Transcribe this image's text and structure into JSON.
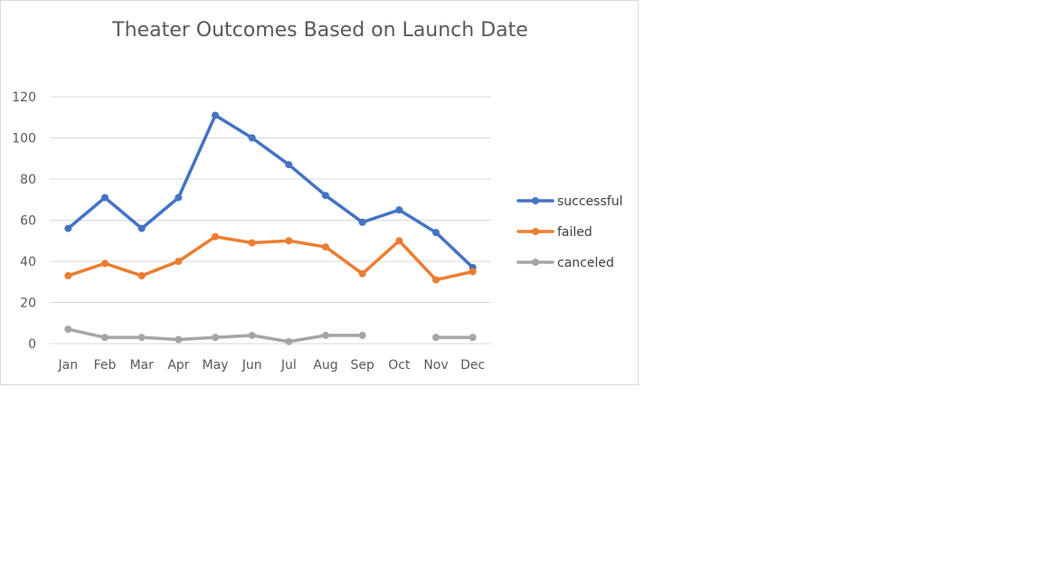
{
  "chart_data": {
    "type": "line",
    "title": "Theater Outcomes Based on Launch Date",
    "xlabel": "",
    "ylabel": "",
    "categories": [
      "Jan",
      "Feb",
      "Mar",
      "Apr",
      "May",
      "Jun",
      "Jul",
      "Aug",
      "Sep",
      "Oct",
      "Nov",
      "Dec"
    ],
    "yticks": [
      "0",
      "20",
      "40",
      "60",
      "80",
      "100",
      "120"
    ],
    "ylim": [
      0,
      120
    ],
    "grid": true,
    "legend_position": "right",
    "series": [
      {
        "name": "successful",
        "color": "#4472c4",
        "values": [
          56,
          71,
          56,
          71,
          111,
          100,
          87,
          72,
          59,
          65,
          54,
          37
        ]
      },
      {
        "name": "failed",
        "color": "#ed7d31",
        "values": [
          33,
          39,
          33,
          40,
          52,
          49,
          50,
          47,
          34,
          50,
          31,
          35
        ]
      },
      {
        "name": "canceled",
        "color": "#a5a5a5",
        "values": [
          7,
          3,
          3,
          2,
          3,
          4,
          1,
          4,
          4,
          null,
          3,
          3
        ]
      }
    ]
  }
}
